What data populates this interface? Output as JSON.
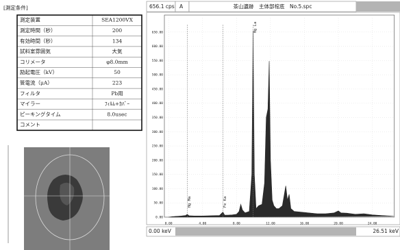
{
  "table": {
    "title": "[測定条件]",
    "rows": [
      [
        "測定装置",
        "SEA1200VX"
      ],
      [
        "測定時間（秒）",
        "200"
      ],
      [
        "有効時間（秒）",
        "134"
      ],
      [
        "試料室雰囲気",
        "大気"
      ],
      [
        "コリメータ",
        "φ8.0mm"
      ],
      [
        "励起電圧（kV）",
        "50"
      ],
      [
        "管電流（μA）",
        "223"
      ],
      [
        "フィルタ",
        "Pb用"
      ],
      [
        "マイラー",
        "ﾌｨﾙﾑ+ｶﾊﾞｰ"
      ],
      [
        "ピーキングタイム",
        "8.0usec"
      ],
      [
        "コメント"
      ]
    ]
  },
  "header": {
    "rate": "656.1 cps",
    "mode": "A",
    "file": "茶山遺跡　主体部棺底　No.5.spc"
  },
  "footer": {
    "start": "0.00 keV",
    "end": "26.51 keV"
  },
  "chart_data": {
    "type": "area",
    "color": "#2a2a2a",
    "grid": true,
    "x": [
      0,
      0.5,
      1.0,
      1.5,
      2.0,
      2.2,
      2.4,
      3.0,
      4.0,
      5.0,
      6.0,
      6.4,
      6.6,
      7.0,
      7.5,
      8.0,
      8.3,
      8.5,
      8.7,
      9.0,
      9.5,
      9.8,
      9.95,
      10.1,
      10.3,
      10.6,
      11.0,
      11.3,
      11.5,
      11.7,
      11.85,
      12.0,
      12.2,
      12.4,
      12.7,
      13.0,
      13.4,
      13.8,
      14.0,
      14.2,
      14.4,
      14.8,
      15.5,
      16.5,
      17.5,
      18.5,
      19.5,
      20.0,
      20.3,
      21.0,
      22.0,
      23.0,
      24.0,
      25.0,
      26.0,
      26.51
    ],
    "values": [
      0,
      2,
      3,
      4,
      6,
      10,
      5,
      4,
      4,
      5,
      6,
      18,
      7,
      7,
      8,
      10,
      20,
      45,
      25,
      15,
      20,
      150,
      655,
      150,
      30,
      40,
      45,
      120,
      350,
      380,
      548,
      200,
      60,
      40,
      30,
      30,
      40,
      110,
      60,
      80,
      30,
      20,
      18,
      15,
      12,
      12,
      15,
      22,
      15,
      14,
      10,
      12,
      8,
      6,
      4,
      3
    ],
    "xlim": [
      -0.5,
      26.51
    ],
    "ylim": [
      0,
      700
    ],
    "xticks": [
      {
        "value": 0,
        "label": "0.00"
      },
      {
        "value": 4,
        "label": "4.00"
      },
      {
        "value": 8,
        "label": "8.00"
      },
      {
        "value": 12,
        "label": "12.00"
      },
      {
        "value": 16,
        "label": "16.00"
      },
      {
        "value": 20,
        "label": "20.00"
      },
      {
        "value": 24,
        "label": "24.00"
      }
    ],
    "yticks": [
      {
        "value": 0,
        "label": "0.00"
      },
      {
        "value": 50,
        "label": "50.00"
      },
      {
        "value": 100,
        "label": "100.00"
      },
      {
        "value": 150,
        "label": "150.00"
      },
      {
        "value": 200,
        "label": "200.00"
      },
      {
        "value": 250,
        "label": "250.00"
      },
      {
        "value": 300,
        "label": "300.00"
      },
      {
        "value": 350,
        "label": "350.00"
      },
      {
        "value": 400,
        "label": "400.00"
      },
      {
        "value": 450,
        "label": "450.00"
      },
      {
        "value": 500,
        "label": "500.00"
      },
      {
        "value": 550,
        "label": "550.00"
      },
      {
        "value": 600,
        "label": "600.00"
      },
      {
        "value": 650,
        "label": "650.00"
      }
    ],
    "annotations": [
      {
        "label": "Hg Ma",
        "x": 2.2
      },
      {
        "label": "Fe Ka",
        "x": 6.4
      },
      {
        "label": "Hg La",
        "x": 9.95
      }
    ]
  }
}
